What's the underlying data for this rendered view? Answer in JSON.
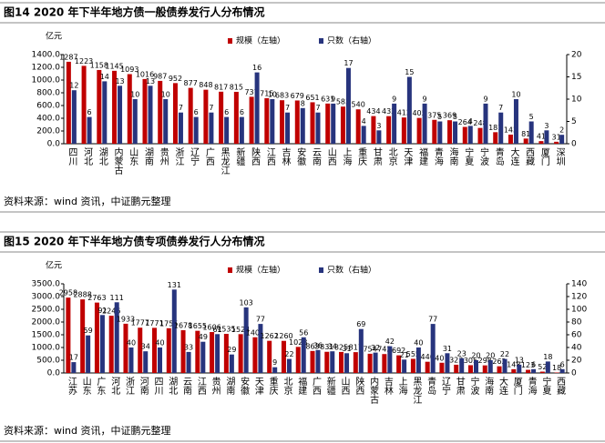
{
  "chart_data": [
    {
      "type": "bar",
      "title": "图14   2020 年下半年地方债一般债券发行人分布情况",
      "y_unit": "亿元",
      "source": "资料来源：wind 资讯，中证鹏元整理",
      "categories": [
        "四川",
        "河北",
        "湖北",
        "内蒙古",
        "山东",
        "湖南",
        "贵州",
        "浙江",
        "辽宁",
        "广西",
        "黑龙江",
        "新疆",
        "陕西",
        "江西",
        "吉林",
        "安徽",
        "云南",
        "山西",
        "上海",
        "重庆",
        "甘肃",
        "北京",
        "天津",
        "福建",
        "青海",
        "海南",
        "宁夏",
        "宁波",
        "青岛",
        "大连",
        "西藏",
        "厦门",
        "深圳"
      ],
      "series": [
        {
          "name": "规模（左轴）",
          "color": "#c00000",
          "values": [
            1287,
            1223,
            1158,
            1145,
            1093,
            1016,
            987,
            952,
            877,
            848,
            817,
            815,
            737,
            715,
            683,
            679,
            651,
            631,
            583,
            540,
            434,
            433,
            412,
            405,
            375,
            369,
            264,
            248,
            181,
            143,
            81,
            41,
            31
          ]
        },
        {
          "name": "只数（右轴）",
          "color": "#27347d",
          "axis": "y2",
          "values": [
            12,
            6,
            14,
            13,
            10,
            13,
            10,
            7,
            6,
            7,
            6,
            6,
            16,
            10,
            7,
            8,
            7,
            9,
            17,
            4,
            3,
            9,
            15,
            9,
            5,
            5,
            4,
            9,
            7,
            10,
            5,
            3,
            2
          ]
        }
      ],
      "ylim": [
        0,
        1400
      ],
      "yticks": [
        {
          "value": 0,
          "label": "0.0"
        },
        {
          "value": 200,
          "label": "200.0"
        },
        {
          "value": 400,
          "label": "400.0"
        },
        {
          "value": 600,
          "label": "600.0"
        },
        {
          "value": 800,
          "label": "800.0"
        },
        {
          "value": 1000,
          "label": "1000.0"
        },
        {
          "value": 1200,
          "label": "1200.0"
        },
        {
          "value": 1400,
          "label": "1400.0"
        }
      ],
      "y2lim": [
        0,
        20
      ],
      "y2ticks": [
        0,
        5,
        10,
        15,
        20
      ]
    },
    {
      "type": "bar",
      "title": "图15   2020 年下半年地方债专项债券发行人分布情况",
      "y_unit": "亿元",
      "source": "资料来源：wind 资讯，中证鹏元整理",
      "categories": [
        "江苏",
        "山东",
        "广东",
        "河北",
        "浙江",
        "河南",
        "四川",
        "湖北",
        "云南",
        "江西",
        "贵州",
        "湖南",
        "安徽",
        "天津",
        "重庆",
        "北京",
        "福建",
        "广西",
        "新疆",
        "山西",
        "陕西",
        "内蒙古",
        "吉林",
        "上海",
        "黑龙江",
        "青岛",
        "辽宁",
        "甘肃",
        "宁波",
        "海南",
        "大连",
        "厦门",
        "青海",
        "宁夏",
        "西藏"
      ],
      "series": [
        {
          "name": "规模（左轴）",
          "color": "#c00000",
          "values": [
            2958,
            2888,
            2763,
            2246,
            1933,
            1777,
            1771,
            1755,
            1678,
            1655,
            1606,
            1535,
            1524,
            1401,
            1262,
            1260,
            1023,
            863,
            831,
            825,
            817,
            754,
            742,
            692,
            555,
            440,
            401,
            323,
            305,
            298,
            262,
            148,
            123,
            52,
            18
          ]
        },
        {
          "name": "只数（右轴）",
          "color": "#27347d",
          "axis": "y2",
          "values": [
            17,
            59,
            91,
            111,
            40,
            34,
            40,
            131,
            33,
            49,
            61,
            29,
            103,
            77,
            9,
            22,
            56,
            36,
            34,
            31,
            69,
            32,
            42,
            21,
            40,
            77,
            31,
            23,
            20,
            20,
            22,
            13,
            6,
            18,
            6
          ]
        }
      ],
      "ylim": [
        0,
        3500
      ],
      "yticks": [
        {
          "value": 0,
          "label": "0.0"
        },
        {
          "value": 500,
          "label": "500.0"
        },
        {
          "value": 1000,
          "label": "1000.0"
        },
        {
          "value": 1500,
          "label": "1500.0"
        },
        {
          "value": 2000,
          "label": "2000.0"
        },
        {
          "value": 2500,
          "label": "2500.0"
        },
        {
          "value": 3000,
          "label": "3000.0"
        },
        {
          "value": 3500,
          "label": "3500.0"
        }
      ],
      "y2lim": [
        0,
        140
      ],
      "y2ticks": [
        0,
        20,
        40,
        60,
        80,
        100,
        120,
        140
      ]
    }
  ]
}
